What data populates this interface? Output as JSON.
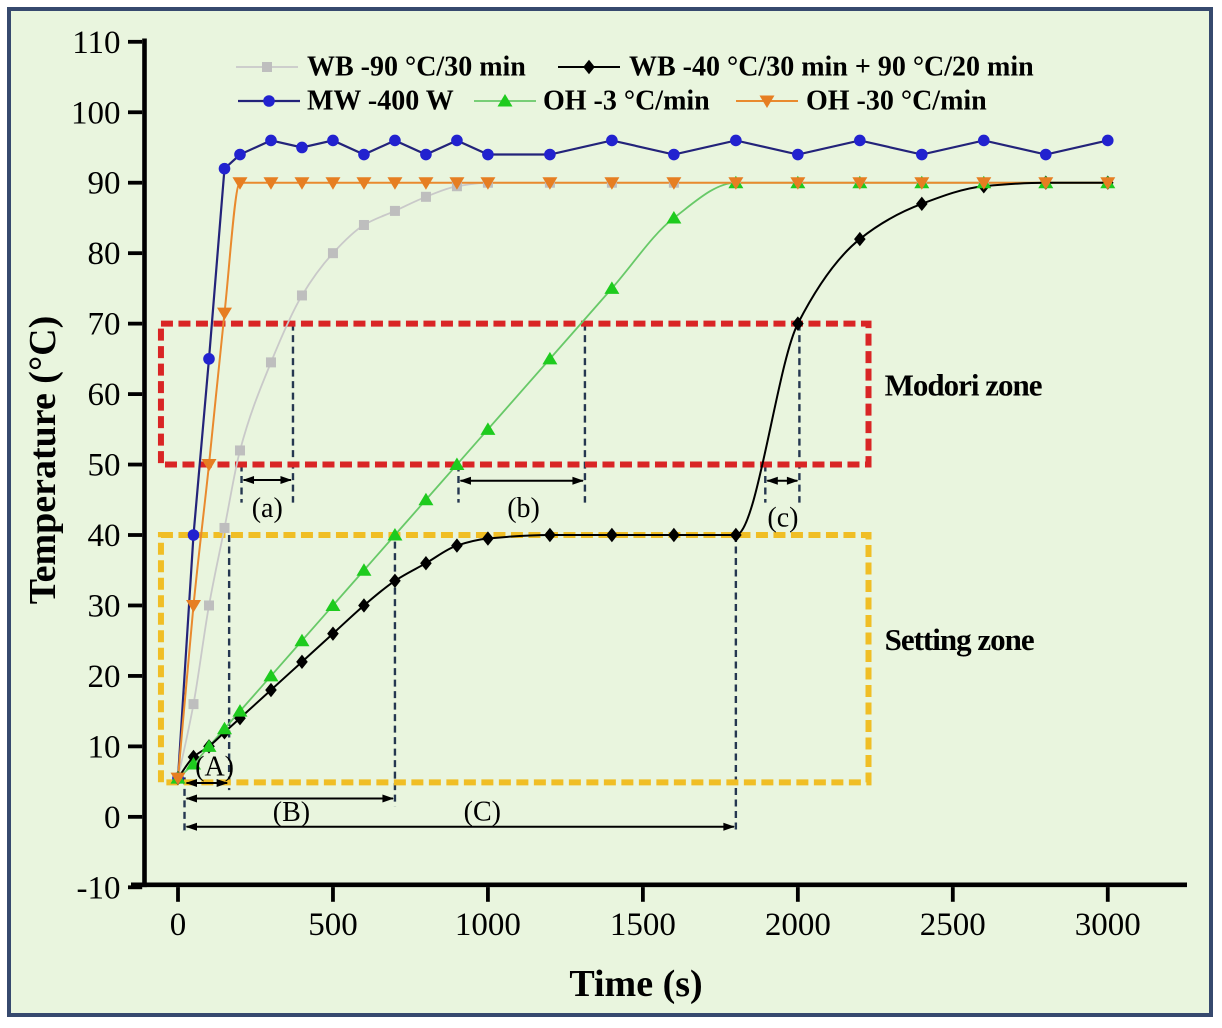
{
  "figure": {
    "background_color": "#e9f5de",
    "border_color": "#36496e"
  },
  "chart_data": {
    "type": "line",
    "title": "",
    "xlabel": "Time (s)",
    "ylabel": "Temperature (°C)",
    "x_ticks": [
      0,
      500,
      1000,
      1500,
      2000,
      2500,
      3000
    ],
    "y_ticks": [
      -10,
      0,
      10,
      20,
      30,
      40,
      50,
      60,
      70,
      80,
      90,
      100,
      110
    ],
    "xlim": [
      -152,
      3256
    ],
    "ylim": [
      -10,
      110
    ],
    "grid": false,
    "legend_position": "top-inside",
    "x": [
      0,
      50,
      100,
      150,
      200,
      300,
      400,
      500,
      600,
      700,
      800,
      900,
      1000,
      1200,
      1400,
      1600,
      1800,
      2000,
      2200,
      2400,
      2600,
      2800,
      3000
    ],
    "series": [
      {
        "name": "WB -90 °C/30 min",
        "marker": "square",
        "marker_color": "#bebebe",
        "line_color": "#c9c9c9",
        "smooth": true,
        "values": [
          5.5,
          16,
          30,
          41,
          52,
          64.5,
          74,
          80,
          84,
          86,
          88,
          89.5,
          90,
          90,
          90,
          90,
          90,
          90,
          90,
          90,
          90,
          90,
          90
        ]
      },
      {
        "name": "MW -400 W",
        "marker": "circle",
        "marker_color": "#2222cf",
        "line_color": "#23237a",
        "smooth": false,
        "values": [
          5.5,
          40,
          65,
          92,
          94,
          96,
          95,
          96,
          94,
          96,
          94,
          96,
          94,
          94,
          96,
          94,
          96,
          94,
          96,
          94,
          96,
          94,
          96
        ]
      },
      {
        "name": "OH -3 °C/min",
        "marker": "triangle-up",
        "marker_color": "#1ecb1e",
        "line_color": "#68c968",
        "smooth": true,
        "values": [
          5.5,
          7.5,
          10,
          12.5,
          15,
          20,
          25,
          30,
          35,
          40,
          45,
          50,
          55,
          65,
          75,
          85,
          90,
          90,
          90,
          90,
          90,
          90,
          90
        ]
      },
      {
        "name": "OH -30 °C/min",
        "marker": "triangle-down",
        "marker_color": "#e67e22",
        "line_color": "#e98a2e",
        "smooth": true,
        "values": [
          5.5,
          30,
          50,
          71.5,
          90,
          90,
          90,
          90,
          90,
          90,
          90,
          90,
          90,
          90,
          90,
          90,
          90,
          90,
          90,
          90,
          90,
          90,
          90
        ]
      },
      {
        "name": "WB -40 °C/30 min + 90 °C/20 min",
        "marker": "diamond",
        "marker_color": "#000000",
        "line_color": "#000000",
        "smooth": true,
        "values": [
          5.5,
          8.5,
          10,
          12,
          14,
          18,
          22,
          26,
          30,
          33.5,
          36,
          38.5,
          39.5,
          40,
          40,
          40,
          40,
          70,
          82,
          87,
          89.5,
          90,
          90
        ]
      }
    ],
    "zones": [
      {
        "label": "Modori zone",
        "color": "#d92525",
        "x0": -55,
        "x1": 2228,
        "y0": 50,
        "y1": 70,
        "label_t": 2280,
        "label_T": 61.3
      },
      {
        "label": "Setting zone",
        "color": "#f0be25",
        "x0": -55,
        "x1": 2228,
        "y0": 4.9,
        "y1": 40,
        "label_t": 2280,
        "label_T": 25.2
      }
    ],
    "guide_lines": [
      {
        "t": 21,
        "T_top": 5.6,
        "T_bottom": -2.2
      },
      {
        "t": 165,
        "T_top": 40,
        "T_bottom": 3.8
      },
      {
        "t": 700,
        "T_top": 40.7,
        "T_bottom": 1.5
      },
      {
        "t": 1800,
        "T_top": 40,
        "T_bottom": -1.8
      },
      {
        "t": 205,
        "T_top": 50,
        "T_bottom": 44.6
      },
      {
        "t": 371,
        "T_top": 70,
        "T_bottom": 44.6
      },
      {
        "t": 905,
        "T_top": 50,
        "T_bottom": 44.6
      },
      {
        "t": 1313,
        "T_top": 70,
        "T_bottom": 44.6
      },
      {
        "t": 1895,
        "T_top": 50,
        "T_bottom": 44.6
      },
      {
        "t": 2005,
        "T_top": 70,
        "T_bottom": 44.6
      }
    ],
    "interval_arrows": [
      {
        "label": "(a)",
        "t0": 205,
        "t1": 371,
        "T": 47.8,
        "label_t": 288,
        "label_T": 44.0
      },
      {
        "label": "(b)",
        "t0": 905,
        "t1": 1313,
        "T": 47.7,
        "label_t": 1115,
        "label_T": 44.0
      },
      {
        "label": "(c)",
        "t0": 1895,
        "t1": 2005,
        "T": 47.7,
        "label_t": 1952,
        "label_T": 42.6
      },
      {
        "label": "(A)",
        "t0": 21,
        "t1": 165,
        "T": 4.8,
        "label_t": 118,
        "label_T": 7.3
      },
      {
        "label": "(B)",
        "t0": 21,
        "t1": 700,
        "T": 2.6,
        "label_t": 366,
        "label_T": 0.8
      },
      {
        "label": "(C)",
        "t0": 21,
        "t1": 1800,
        "T": -1.4,
        "label_t": 982,
        "label_T": 0.9
      }
    ]
  }
}
